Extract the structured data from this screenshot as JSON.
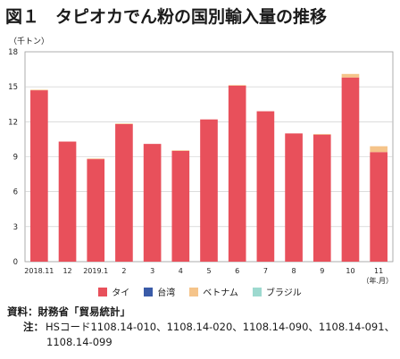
{
  "title": {
    "number": "図１",
    "text": "タピオカでん粉の国別輸入量の推移"
  },
  "unit_label": "（千トン）",
  "chart_data": {
    "type": "bar",
    "stacked": true,
    "ylim": [
      0,
      18
    ],
    "yticks": [
      0,
      3,
      6,
      9,
      12,
      15,
      18
    ],
    "categories": [
      "2018.11",
      "12",
      "2019.1",
      "2",
      "3",
      "4",
      "5",
      "6",
      "7",
      "8",
      "9",
      "10",
      "11"
    ],
    "x_end_label": "（年.月）",
    "series": [
      {
        "name": "タイ",
        "color": "#e8505b",
        "values": [
          14.7,
          10.3,
          8.8,
          11.8,
          10.1,
          9.5,
          12.2,
          15.1,
          12.9,
          11.0,
          10.9,
          15.8,
          9.4
        ]
      },
      {
        "name": "台湾",
        "color": "#3a5ba8",
        "values": [
          0,
          0,
          0,
          0,
          0,
          0,
          0,
          0,
          0,
          0,
          0,
          0,
          0
        ]
      },
      {
        "name": "ベトナム",
        "color": "#f5c48a",
        "values": [
          0.05,
          0,
          0.05,
          0.05,
          0,
          0.05,
          0,
          0.05,
          0,
          0,
          0.05,
          0.3,
          0.5
        ]
      },
      {
        "name": "ブラジル",
        "color": "#9dd9cf",
        "values": [
          0,
          0,
          0,
          0,
          0,
          0,
          0,
          0,
          0,
          0,
          0,
          0,
          0
        ]
      }
    ],
    "grid": true,
    "legend": "bottom"
  },
  "notes": {
    "source_head": "資料：",
    "source_text": "財務省「貿易統計」",
    "note_head": "注：",
    "note_line1": "HSコード1108.14-010、1108.14-020、1108.14-090、1108.14-091、",
    "note_line2": "1108.14-099"
  }
}
